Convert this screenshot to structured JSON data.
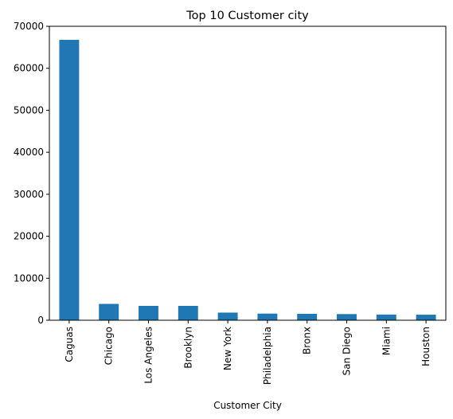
{
  "chart_data": {
    "type": "bar",
    "title": "Top 10 Customer city",
    "xlabel": "Customer City",
    "ylabel": "",
    "categories": [
      "Caguas",
      "Chicago",
      "Los Angeles",
      "Brooklyn",
      "New York",
      "Philadelphia",
      "Bronx",
      "San Diego",
      "Miami",
      "Houston"
    ],
    "values": [
      66770,
      3885,
      3417,
      3412,
      1816,
      1577,
      1526,
      1464,
      1348,
      1317
    ],
    "ylim": [
      0,
      70000
    ],
    "yticks": [
      "0",
      "10000",
      "20000",
      "30000",
      "40000",
      "50000",
      "60000",
      "70000"
    ],
    "grid": false,
    "legend": "none",
    "bar_color": "#1f77b4"
  }
}
